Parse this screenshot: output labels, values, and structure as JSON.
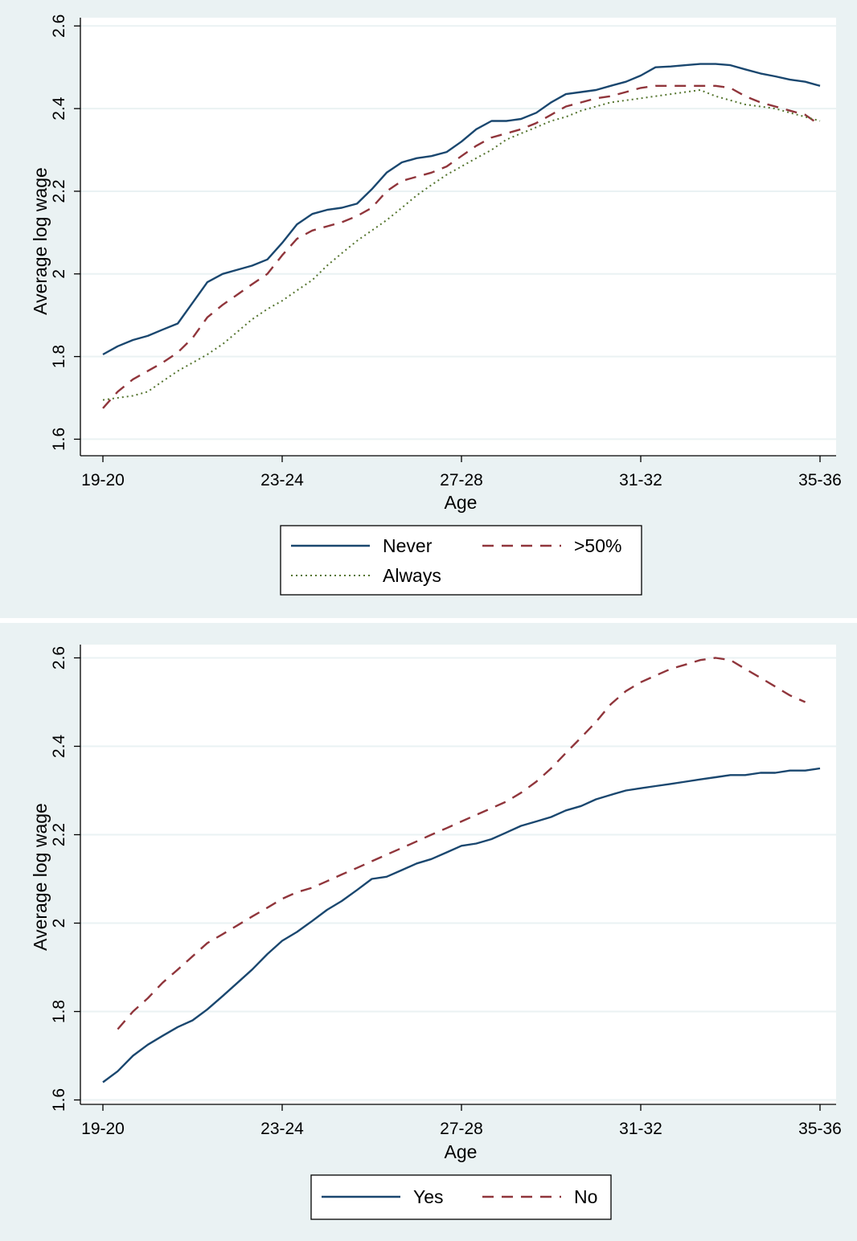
{
  "chart_data": [
    {
      "type": "line",
      "xlabel": "Age",
      "ylabel": "Average log wage",
      "x_ticks": [
        "19-20",
        "23-24",
        "27-28",
        "31-32",
        "35-36"
      ],
      "x_tick_positions": [
        0,
        4,
        8,
        12,
        16
      ],
      "xlim": [
        0,
        16
      ],
      "ylim": [
        1.56,
        2.62
      ],
      "y_ticks": [
        1.6,
        1.8,
        2.0,
        2.2,
        2.4,
        2.6
      ],
      "y_tick_labels": [
        "1.6",
        "1.8",
        "2",
        "2.2",
        "2.4",
        "2.6"
      ],
      "grid": true,
      "legend_position": "bottom",
      "series": [
        {
          "name": "Never",
          "style": "solid",
          "color": "#1a476f",
          "x": [
            0,
            0.33,
            0.67,
            1,
            1.33,
            1.67,
            2,
            2.33,
            2.67,
            3,
            3.33,
            3.67,
            4,
            4.33,
            4.67,
            5,
            5.33,
            5.67,
            6,
            6.33,
            6.67,
            7,
            7.33,
            7.67,
            8,
            8.33,
            8.67,
            9,
            9.33,
            9.67,
            10,
            10.33,
            10.67,
            11,
            11.33,
            11.67,
            12,
            12.33,
            12.67,
            13,
            13.33,
            13.67,
            14,
            14.33,
            14.67,
            15,
            15.33,
            15.67,
            16
          ],
          "y": [
            1.805,
            1.825,
            1.84,
            1.85,
            1.865,
            1.88,
            1.93,
            1.98,
            2.0,
            2.01,
            2.02,
            2.035,
            2.075,
            2.12,
            2.145,
            2.155,
            2.16,
            2.17,
            2.205,
            2.245,
            2.27,
            2.28,
            2.285,
            2.295,
            2.32,
            2.35,
            2.37,
            2.37,
            2.375,
            2.39,
            2.415,
            2.435,
            2.44,
            2.445,
            2.455,
            2.465,
            2.48,
            2.5,
            2.502,
            2.505,
            2.508,
            2.508,
            2.505,
            2.495,
            2.485,
            2.478,
            2.47,
            2.465,
            2.455
          ]
        },
        {
          "name": ">50%",
          "style": "dashed",
          "color": "#90353b",
          "x": [
            0,
            0.33,
            0.67,
            1,
            1.33,
            1.67,
            2,
            2.33,
            2.67,
            3,
            3.33,
            3.67,
            4,
            4.33,
            4.67,
            5,
            5.33,
            5.67,
            6,
            6.33,
            6.67,
            7,
            7.33,
            7.67,
            8,
            8.33,
            8.67,
            9,
            9.33,
            9.67,
            10,
            10.33,
            10.67,
            11,
            11.33,
            11.67,
            12,
            12.33,
            12.67,
            13,
            13.33,
            13.67,
            14,
            14.33,
            14.67,
            15,
            15.33,
            15.67,
            16
          ],
          "y": [
            1.675,
            1.715,
            1.745,
            1.765,
            1.785,
            1.81,
            1.845,
            1.895,
            1.925,
            1.95,
            1.975,
            2.0,
            2.045,
            2.085,
            2.105,
            2.115,
            2.125,
            2.14,
            2.16,
            2.2,
            2.225,
            2.235,
            2.245,
            2.26,
            2.285,
            2.31,
            2.33,
            2.34,
            2.35,
            2.365,
            2.385,
            2.405,
            2.415,
            2.425,
            2.43,
            2.44,
            2.45,
            2.455,
            2.455,
            2.455,
            2.455,
            2.455,
            2.45,
            2.43,
            2.415,
            2.405,
            2.395,
            2.385,
            2.36
          ]
        },
        {
          "name": "Always",
          "style": "dotted",
          "color": "#55752f",
          "x": [
            0,
            0.33,
            0.67,
            1,
            1.33,
            1.67,
            2,
            2.33,
            2.67,
            3,
            3.33,
            3.67,
            4,
            4.33,
            4.67,
            5,
            5.33,
            5.67,
            6,
            6.33,
            6.67,
            7,
            7.33,
            7.67,
            8,
            8.33,
            8.67,
            9,
            9.33,
            9.67,
            10,
            10.33,
            10.67,
            11,
            11.33,
            11.67,
            12,
            12.33,
            12.67,
            13,
            13.33,
            13.67,
            14,
            14.33,
            14.67,
            15,
            15.33,
            15.67,
            16
          ],
          "y": [
            1.695,
            1.7,
            1.705,
            1.715,
            1.74,
            1.765,
            1.785,
            1.805,
            1.83,
            1.86,
            1.89,
            1.915,
            1.935,
            1.96,
            1.985,
            2.02,
            2.05,
            2.08,
            2.105,
            2.13,
            2.16,
            2.19,
            2.215,
            2.24,
            2.26,
            2.28,
            2.3,
            2.325,
            2.34,
            2.355,
            2.37,
            2.38,
            2.395,
            2.405,
            2.415,
            2.42,
            2.425,
            2.43,
            2.435,
            2.44,
            2.445,
            2.43,
            2.42,
            2.41,
            2.405,
            2.4,
            2.39,
            2.38,
            2.37
          ]
        }
      ]
    },
    {
      "type": "line",
      "xlabel": "Age",
      "ylabel": "Average log wage",
      "x_ticks": [
        "19-20",
        "23-24",
        "27-28",
        "31-32",
        "35-36"
      ],
      "x_tick_positions": [
        0,
        4,
        8,
        12,
        16
      ],
      "xlim": [
        0,
        16
      ],
      "ylim": [
        1.59,
        2.63
      ],
      "y_ticks": [
        1.6,
        1.8,
        2.0,
        2.2,
        2.4,
        2.6
      ],
      "y_tick_labels": [
        "1.6",
        "1.8",
        "2",
        "2.2",
        "2.4",
        "2.6"
      ],
      "grid": true,
      "legend_position": "bottom",
      "series": [
        {
          "name": "Yes",
          "style": "solid",
          "color": "#1a476f",
          "x": [
            0,
            0.33,
            0.67,
            1,
            1.33,
            1.67,
            2,
            2.33,
            2.67,
            3,
            3.33,
            3.67,
            4,
            4.33,
            4.67,
            5,
            5.33,
            5.67,
            6,
            6.33,
            6.67,
            7,
            7.33,
            7.67,
            8,
            8.33,
            8.67,
            9,
            9.33,
            9.67,
            10,
            10.33,
            10.67,
            11,
            11.33,
            11.67,
            12,
            12.33,
            12.67,
            13,
            13.33,
            13.67,
            14,
            14.33,
            14.67,
            15,
            15.33,
            15.67,
            16
          ],
          "y": [
            1.64,
            1.665,
            1.7,
            1.725,
            1.745,
            1.765,
            1.78,
            1.805,
            1.835,
            1.865,
            1.895,
            1.93,
            1.96,
            1.98,
            2.005,
            2.03,
            2.05,
            2.075,
            2.1,
            2.105,
            2.12,
            2.135,
            2.145,
            2.16,
            2.175,
            2.18,
            2.19,
            2.205,
            2.22,
            2.23,
            2.24,
            2.255,
            2.265,
            2.28,
            2.29,
            2.3,
            2.305,
            2.31,
            2.315,
            2.32,
            2.325,
            2.33,
            2.335,
            2.335,
            2.34,
            2.34,
            2.345,
            2.345,
            2.35
          ]
        },
        {
          "name": "No",
          "style": "dashed",
          "color": "#90353b",
          "x": [
            0.33,
            0.67,
            1,
            1.33,
            1.67,
            2,
            2.33,
            2.67,
            3,
            3.33,
            3.67,
            4,
            4.33,
            4.67,
            5,
            5.33,
            5.67,
            6,
            6.33,
            6.67,
            7,
            7.33,
            7.67,
            8,
            8.33,
            8.67,
            9,
            9.33,
            9.67,
            10,
            10.33,
            10.67,
            11,
            11.33,
            11.67,
            12,
            12.33,
            12.67,
            13,
            13.33,
            13.67,
            14,
            14.33,
            14.67,
            15,
            15.33,
            15.67
          ],
          "y": [
            1.76,
            1.8,
            1.83,
            1.865,
            1.895,
            1.925,
            1.955,
            1.975,
            1.995,
            2.015,
            2.035,
            2.055,
            2.07,
            2.08,
            2.095,
            2.11,
            2.125,
            2.14,
            2.155,
            2.17,
            2.185,
            2.2,
            2.215,
            2.23,
            2.245,
            2.26,
            2.275,
            2.295,
            2.32,
            2.35,
            2.385,
            2.42,
            2.455,
            2.495,
            2.525,
            2.545,
            2.56,
            2.575,
            2.585,
            2.595,
            2.6,
            2.595,
            2.575,
            2.555,
            2.535,
            2.515,
            2.5
          ]
        }
      ]
    }
  ]
}
